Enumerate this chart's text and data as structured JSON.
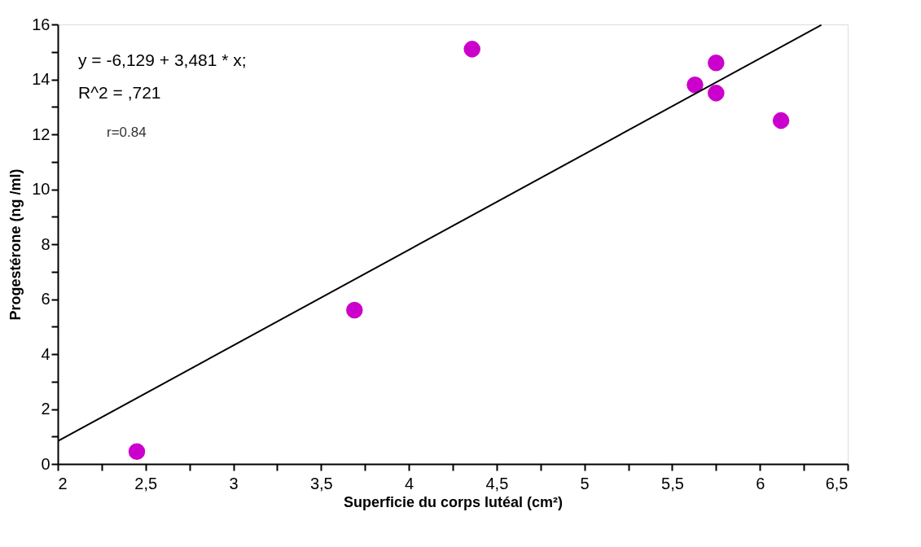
{
  "chart_data": {
    "type": "scatter",
    "xlabel": "Superficie du corps lutéal   (cm²)",
    "ylabel": "Progestérone (ng /ml)",
    "annotations": [
      "y = -6,129 + 3,481 * x;",
      "R^2 = ,721",
      "r=0.84"
    ],
    "series": [
      {
        "color": "#cc00cc",
        "marker": "circle",
        "x": [
          2.45,
          3.69,
          4.36,
          5.63,
          5.75,
          5.75,
          6.12
        ],
        "values": [
          0.45,
          5.6,
          15.1,
          13.8,
          14.6,
          13.5,
          12.5
        ]
      },
      {
        "type": "line",
        "marker": "none",
        "color": "#000000",
        "x": [
          2,
          6.35
        ],
        "values": [
          0.83,
          15.98
        ]
      }
    ],
    "xlim": [
      2,
      6.5
    ],
    "xticks": [
      {
        "value": 2,
        "label": "2"
      },
      {
        "value": 2.25,
        "label": null
      },
      {
        "value": 2.5,
        "label": "2,5"
      },
      {
        "value": 2.75,
        "label": null
      },
      {
        "value": 3,
        "label": "3"
      },
      {
        "value": 3.25,
        "label": null
      },
      {
        "value": 3.5,
        "label": "3,5"
      },
      {
        "value": 3.75,
        "label": null
      },
      {
        "value": 4,
        "label": "4"
      },
      {
        "value": 4.25,
        "label": null
      },
      {
        "value": 4.5,
        "label": "4,5"
      },
      {
        "value": 4.75,
        "label": null
      },
      {
        "value": 5,
        "label": "5"
      },
      {
        "value": 5.25,
        "label": null
      },
      {
        "value": 5.5,
        "label": "5,5"
      },
      {
        "value": 5.75,
        "label": null
      },
      {
        "value": 6,
        "label": "6"
      },
      {
        "value": 6.25,
        "label": null
      },
      {
        "value": 6.5,
        "label": "6,5"
      }
    ],
    "ylim": [
      0,
      16
    ],
    "yticks": [
      0,
      {
        "value": 1,
        "label": null
      },
      2,
      {
        "value": 3,
        "label": null
      },
      4,
      {
        "value": 5,
        "label": null
      },
      6,
      {
        "value": 7,
        "label": null
      },
      8,
      {
        "value": 9,
        "label": null
      },
      10,
      {
        "value": 11,
        "label": null
      },
      12,
      {
        "value": 13,
        "label": null
      },
      14,
      {
        "value": 15,
        "label": null
      },
      16
    ],
    "grid": false,
    "line_style": "solid"
  }
}
